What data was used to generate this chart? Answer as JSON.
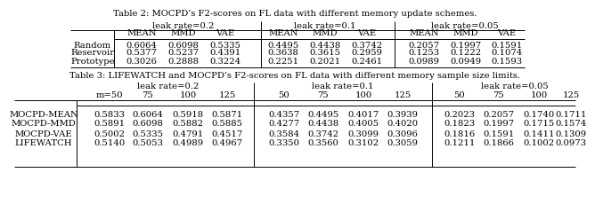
{
  "table2_title": "Table 2: MOCPD’s F2-scores on FL data with different memory update schemes.",
  "table2_rows": [
    {
      "label": "Random",
      "values": [
        "0.6064",
        "0.6098",
        "0.5335",
        "0.4495",
        "0.4438",
        "0.3742",
        "0.2057",
        "0.1997",
        "0.1591"
      ]
    },
    {
      "label": "Reservoir",
      "values": [
        "0.5377",
        "0.5237",
        "0.4391",
        "0.3638",
        "0.3615",
        "0.2959",
        "0.1253",
        "0.1222",
        "0.1074"
      ]
    },
    {
      "label": "Prototype",
      "values": [
        "0.3026",
        "0.2888",
        "0.3224",
        "0.2251",
        "0.2021",
        "0.2461",
        "0.0989",
        "0.0949",
        "0.1593"
      ]
    }
  ],
  "table3_title": "Table 3: LIFEWATCH and MOCPD’s F2-scores on FL data with different memory sample size limits.",
  "table3_rows": [
    {
      "label": "MOCPD-MEAN",
      "values": [
        "0.5833",
        "0.6064",
        "0.5918",
        "0.5871",
        "0.4357",
        "0.4495",
        "0.4017",
        "0.3939",
        "0.2023",
        "0.2057",
        "0.1740",
        "0.1711"
      ]
    },
    {
      "label": "MOCPD-MMD",
      "values": [
        "0.5891",
        "0.6098",
        "0.5882",
        "0.5885",
        "0.4277",
        "0.4438",
        "0.4005",
        "0.4020",
        "0.1823",
        "0.1997",
        "0.1715",
        "0.1574"
      ]
    },
    {
      "label": "MOCPD-VAE",
      "values": [
        "0.5002",
        "0.5335",
        "0.4791",
        "0.4517",
        "0.3584",
        "0.3742",
        "0.3099",
        "0.3096",
        "0.1816",
        "0.1591",
        "0.1411",
        "0.1309"
      ]
    },
    {
      "label": "LIFEWATCH",
      "values": [
        "0.5140",
        "0.5053",
        "0.4989",
        "0.4967",
        "0.3350",
        "0.3560",
        "0.3102",
        "0.3059",
        "0.1211",
        "0.1866",
        "0.1002",
        "0.0973"
      ]
    }
  ],
  "bg_color": "#ffffff",
  "text_color": "#000000",
  "line_color": "#000000"
}
